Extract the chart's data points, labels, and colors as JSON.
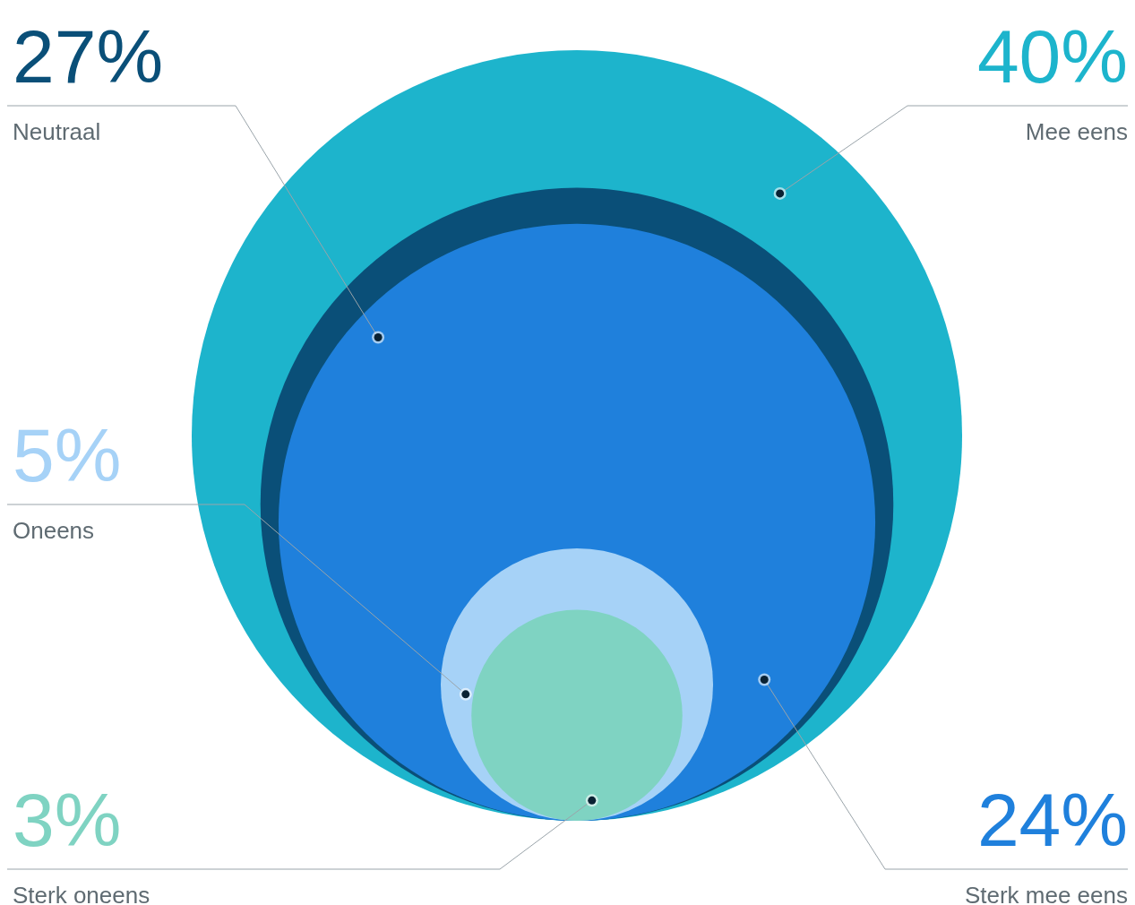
{
  "chart_data": {
    "type": "other",
    "categories": [
      "Mee eens",
      "Neutraal",
      "Sterk mee eens",
      "Oneens",
      "Sterk oneens"
    ],
    "values": [
      40,
      27,
      24,
      5,
      3
    ],
    "value_labels": [
      "40%",
      "27%",
      "24%",
      "5%",
      "3%"
    ],
    "colors": [
      "#1db4cc",
      "#0a4f78",
      "#1f80dc",
      "#a6d2f7",
      "#7fd3c2"
    ]
  }
}
